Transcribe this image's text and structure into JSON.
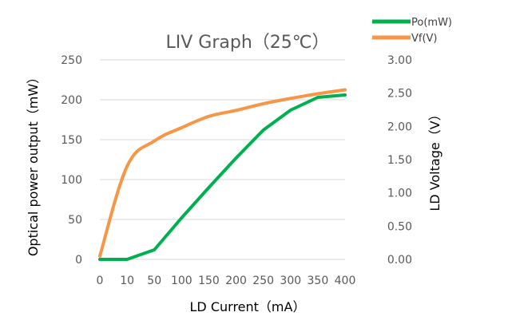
{
  "chart_data": {
    "type": "line",
    "title": "LIV Graph（25℃）",
    "xlabel": "LD Current（mA）",
    "ylabel_left": "Optical power output（mW）",
    "ylabel_right": "LD Voltage（V）",
    "categories": [
      "0",
      "10",
      "50",
      "100",
      "150",
      "200",
      "250",
      "300",
      "350",
      "400"
    ],
    "y_left": {
      "range": [
        0,
        250
      ],
      "ticks": [
        "0",
        "50",
        "100",
        "150",
        "200",
        "250"
      ]
    },
    "y_right": {
      "range": [
        0,
        3
      ],
      "ticks": [
        "0.00",
        "0.50",
        "1.00",
        "1.50",
        "2.00",
        "2.50",
        "3.00"
      ]
    },
    "grid": true,
    "legend_position": "top-right",
    "series": [
      {
        "name": "Po(mW)",
        "axis": "left",
        "color": "#00B050",
        "values": [
          0,
          0,
          12,
          52,
          90,
          127,
          162,
          187,
          203,
          206
        ]
      },
      {
        "name": "Vf(V)",
        "axis": "right",
        "color": "#F79646",
        "values": [
          0.05,
          1.4,
          1.78,
          1.98,
          2.15,
          2.24,
          2.34,
          2.42,
          2.49,
          2.55
        ]
      }
    ]
  }
}
